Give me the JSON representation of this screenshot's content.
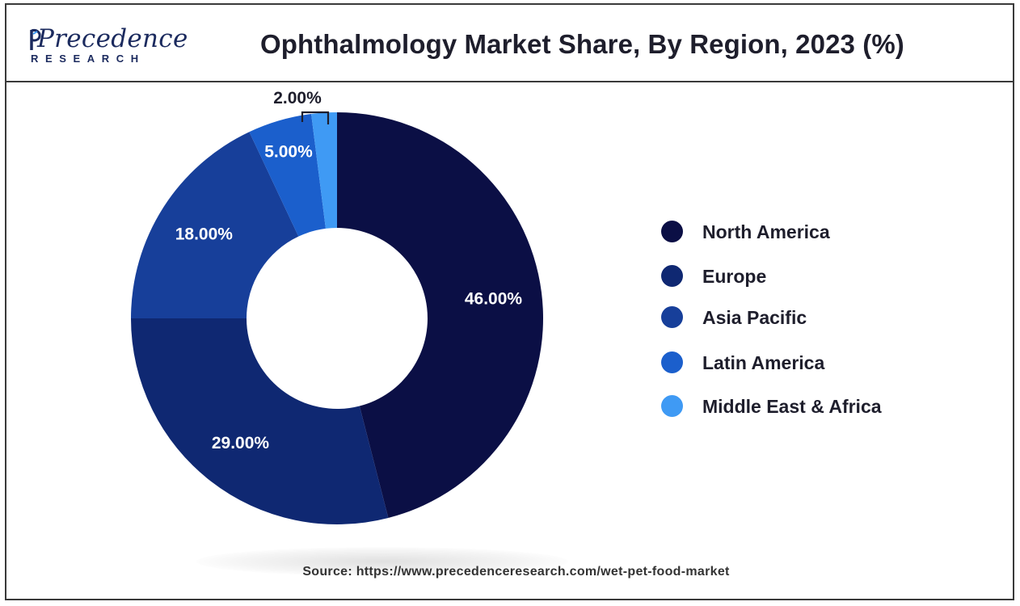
{
  "header": {
    "logo_main": "Precedence",
    "logo_sub": "RESEARCH",
    "title": "Ophthalmology Market Share, By Region, 2023 (%)"
  },
  "chart_data": {
    "type": "pie",
    "variant": "donut",
    "title": "Ophthalmology Market Share, By Region, 2023 (%)",
    "categories": [
      "North America",
      "Europe",
      "Asia Pacific",
      "Latin America",
      "Middle East & Africa"
    ],
    "values": [
      46,
      29,
      18,
      5,
      2
    ],
    "labels": [
      "46.00%",
      "29.00%",
      "18.00%",
      "5.00%",
      "2.00%"
    ],
    "colors": [
      "#0b0f45",
      "#0f2872",
      "#173f9a",
      "#1b5fcc",
      "#3f9af4"
    ],
    "legend_position": "right"
  },
  "legend": {
    "items": [
      {
        "label": "North America",
        "color": "#0b0f45"
      },
      {
        "label": "Europe",
        "color": "#0f2872"
      },
      {
        "label": "Asia Pacific",
        "color": "#173f9a"
      },
      {
        "label": "Latin America",
        "color": "#1b5fcc"
      },
      {
        "label": "Middle East & Africa",
        "color": "#3f9af4"
      }
    ]
  },
  "footer": {
    "source": "Source: https://www.precedenceresearch.com/wet-pet-food-market"
  }
}
